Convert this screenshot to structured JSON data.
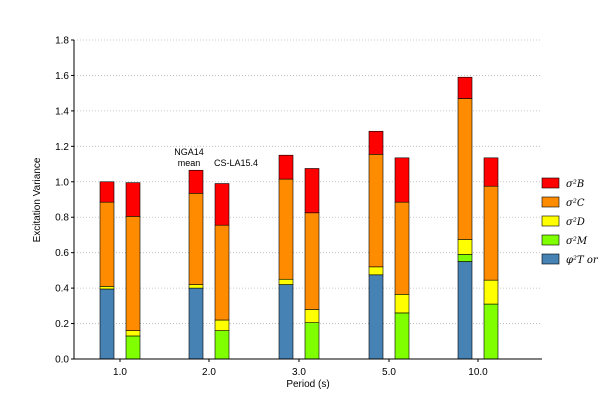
{
  "chart_data": {
    "type": "bar",
    "stacked": true,
    "xlabel": "Period (s)",
    "ylabel": "Excitation Variance",
    "ylim": [
      0,
      1.8
    ],
    "yticks": [
      "0.0",
      "0.2",
      "0.4",
      "0.6",
      "0.8",
      "1.0",
      "1.2",
      "1.4",
      "1.6",
      "1.8"
    ],
    "grid": "horizontal dotted",
    "categories": [
      "1.0",
      "2.0",
      "3.0",
      "5.0",
      "10.0"
    ],
    "models": [
      {
        "label_lines": [
          "NGA14",
          "mean"
        ],
        "annotated_at": "2.0"
      },
      {
        "label_lines": [
          "CS-LA15.4"
        ],
        "annotated_at": "2.0"
      }
    ],
    "legend": {
      "placement": "right",
      "entries": [
        {
          "label": "σ²B",
          "color": "#ff0000"
        },
        {
          "label": "σ²C",
          "color": "#ff8c00"
        },
        {
          "label": "σ²D",
          "color": "#ffff00"
        },
        {
          "label": "σ²M",
          "color": "#7fff00"
        },
        {
          "label": "φ²T or σ",
          "color": "#4682b4"
        }
      ]
    },
    "colors": {
      "B": "#ff0000",
      "C": "#ff8c00",
      "D": "#ffff00",
      "M": "#7fff00",
      "T": "#4682b4"
    },
    "bars": [
      {
        "category": "1.0",
        "model": "NGA14 mean",
        "segments": [
          {
            "key": "T",
            "value": 0.395
          },
          {
            "key": "M",
            "value": 0.0
          },
          {
            "key": "D",
            "value": 0.015
          },
          {
            "key": "C",
            "value": 0.475
          },
          {
            "key": "B",
            "value": 0.115
          }
        ]
      },
      {
        "category": "1.0",
        "model": "CS-LA15.4",
        "segments": [
          {
            "key": "T",
            "value": 0.0
          },
          {
            "key": "M",
            "value": 0.13
          },
          {
            "key": "D",
            "value": 0.03
          },
          {
            "key": "C",
            "value": 0.645
          },
          {
            "key": "B",
            "value": 0.19
          }
        ]
      },
      {
        "category": "2.0",
        "model": "NGA14 mean",
        "segments": [
          {
            "key": "T",
            "value": 0.4
          },
          {
            "key": "M",
            "value": 0.0
          },
          {
            "key": "D",
            "value": 0.02
          },
          {
            "key": "C",
            "value": 0.515
          },
          {
            "key": "B",
            "value": 0.13
          }
        ]
      },
      {
        "category": "2.0",
        "model": "CS-LA15.4",
        "segments": [
          {
            "key": "T",
            "value": 0.0
          },
          {
            "key": "M",
            "value": 0.16
          },
          {
            "key": "D",
            "value": 0.06
          },
          {
            "key": "C",
            "value": 0.535
          },
          {
            "key": "B",
            "value": 0.235
          }
        ]
      },
      {
        "category": "3.0",
        "model": "NGA14 mean",
        "segments": [
          {
            "key": "T",
            "value": 0.42
          },
          {
            "key": "M",
            "value": 0.0
          },
          {
            "key": "D",
            "value": 0.03
          },
          {
            "key": "C",
            "value": 0.565
          },
          {
            "key": "B",
            "value": 0.135
          }
        ]
      },
      {
        "category": "3.0",
        "model": "CS-LA15.4",
        "segments": [
          {
            "key": "T",
            "value": 0.0
          },
          {
            "key": "M",
            "value": 0.205
          },
          {
            "key": "D",
            "value": 0.075
          },
          {
            "key": "C",
            "value": 0.545
          },
          {
            "key": "B",
            "value": 0.25
          }
        ]
      },
      {
        "category": "5.0",
        "model": "NGA14 mean",
        "segments": [
          {
            "key": "T",
            "value": 0.475
          },
          {
            "key": "M",
            "value": 0.0
          },
          {
            "key": "D",
            "value": 0.045
          },
          {
            "key": "C",
            "value": 0.635
          },
          {
            "key": "B",
            "value": 0.13
          }
        ]
      },
      {
        "category": "5.0",
        "model": "CS-LA15.4",
        "segments": [
          {
            "key": "T",
            "value": 0.0
          },
          {
            "key": "M",
            "value": 0.26
          },
          {
            "key": "D",
            "value": 0.105
          },
          {
            "key": "C",
            "value": 0.52
          },
          {
            "key": "B",
            "value": 0.25
          }
        ]
      },
      {
        "category": "10.0",
        "model": "NGA14 mean",
        "segments": [
          {
            "key": "T",
            "value": 0.55
          },
          {
            "key": "M",
            "value": 0.04
          },
          {
            "key": "D",
            "value": 0.085
          },
          {
            "key": "C",
            "value": 0.795
          },
          {
            "key": "B",
            "value": 0.12
          }
        ]
      },
      {
        "category": "10.0",
        "model": "CS-LA15.4",
        "segments": [
          {
            "key": "T",
            "value": 0.0
          },
          {
            "key": "M",
            "value": 0.31
          },
          {
            "key": "D",
            "value": 0.135
          },
          {
            "key": "C",
            "value": 0.53
          },
          {
            "key": "B",
            "value": 0.16
          }
        ]
      }
    ]
  }
}
